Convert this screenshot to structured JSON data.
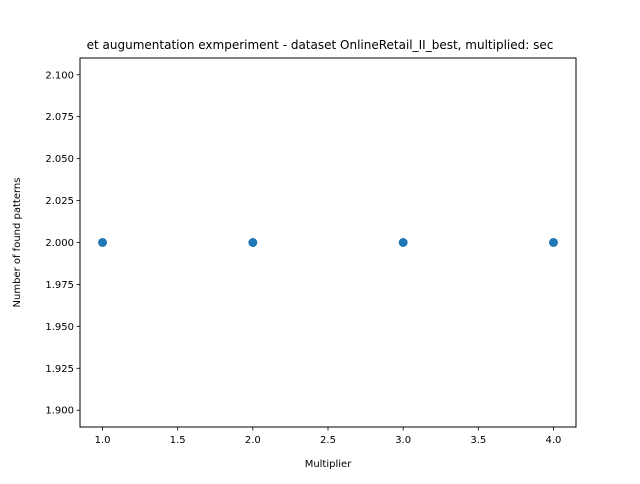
{
  "chart_data": {
    "type": "scatter",
    "title": "et augumentation exmperiment - dataset OnlineRetail_II_best, multiplied: sec",
    "xlabel": "Multiplier",
    "ylabel": "Number of found patterns",
    "x": [
      1.0,
      2.0,
      3.0,
      4.0
    ],
    "y": [
      2.0,
      2.0,
      2.0,
      2.0
    ],
    "xlim": [
      0.85,
      4.15
    ],
    "ylim": [
      1.89,
      2.11
    ],
    "xticks": [
      "1.0",
      "1.5",
      "2.0",
      "2.5",
      "3.0",
      "3.5",
      "4.0"
    ],
    "yticks": [
      "1.900",
      "1.925",
      "1.950",
      "1.975",
      "2.000",
      "2.025",
      "2.050",
      "2.075",
      "2.100"
    ],
    "grid": false,
    "marker_color": "#1f77b4"
  }
}
